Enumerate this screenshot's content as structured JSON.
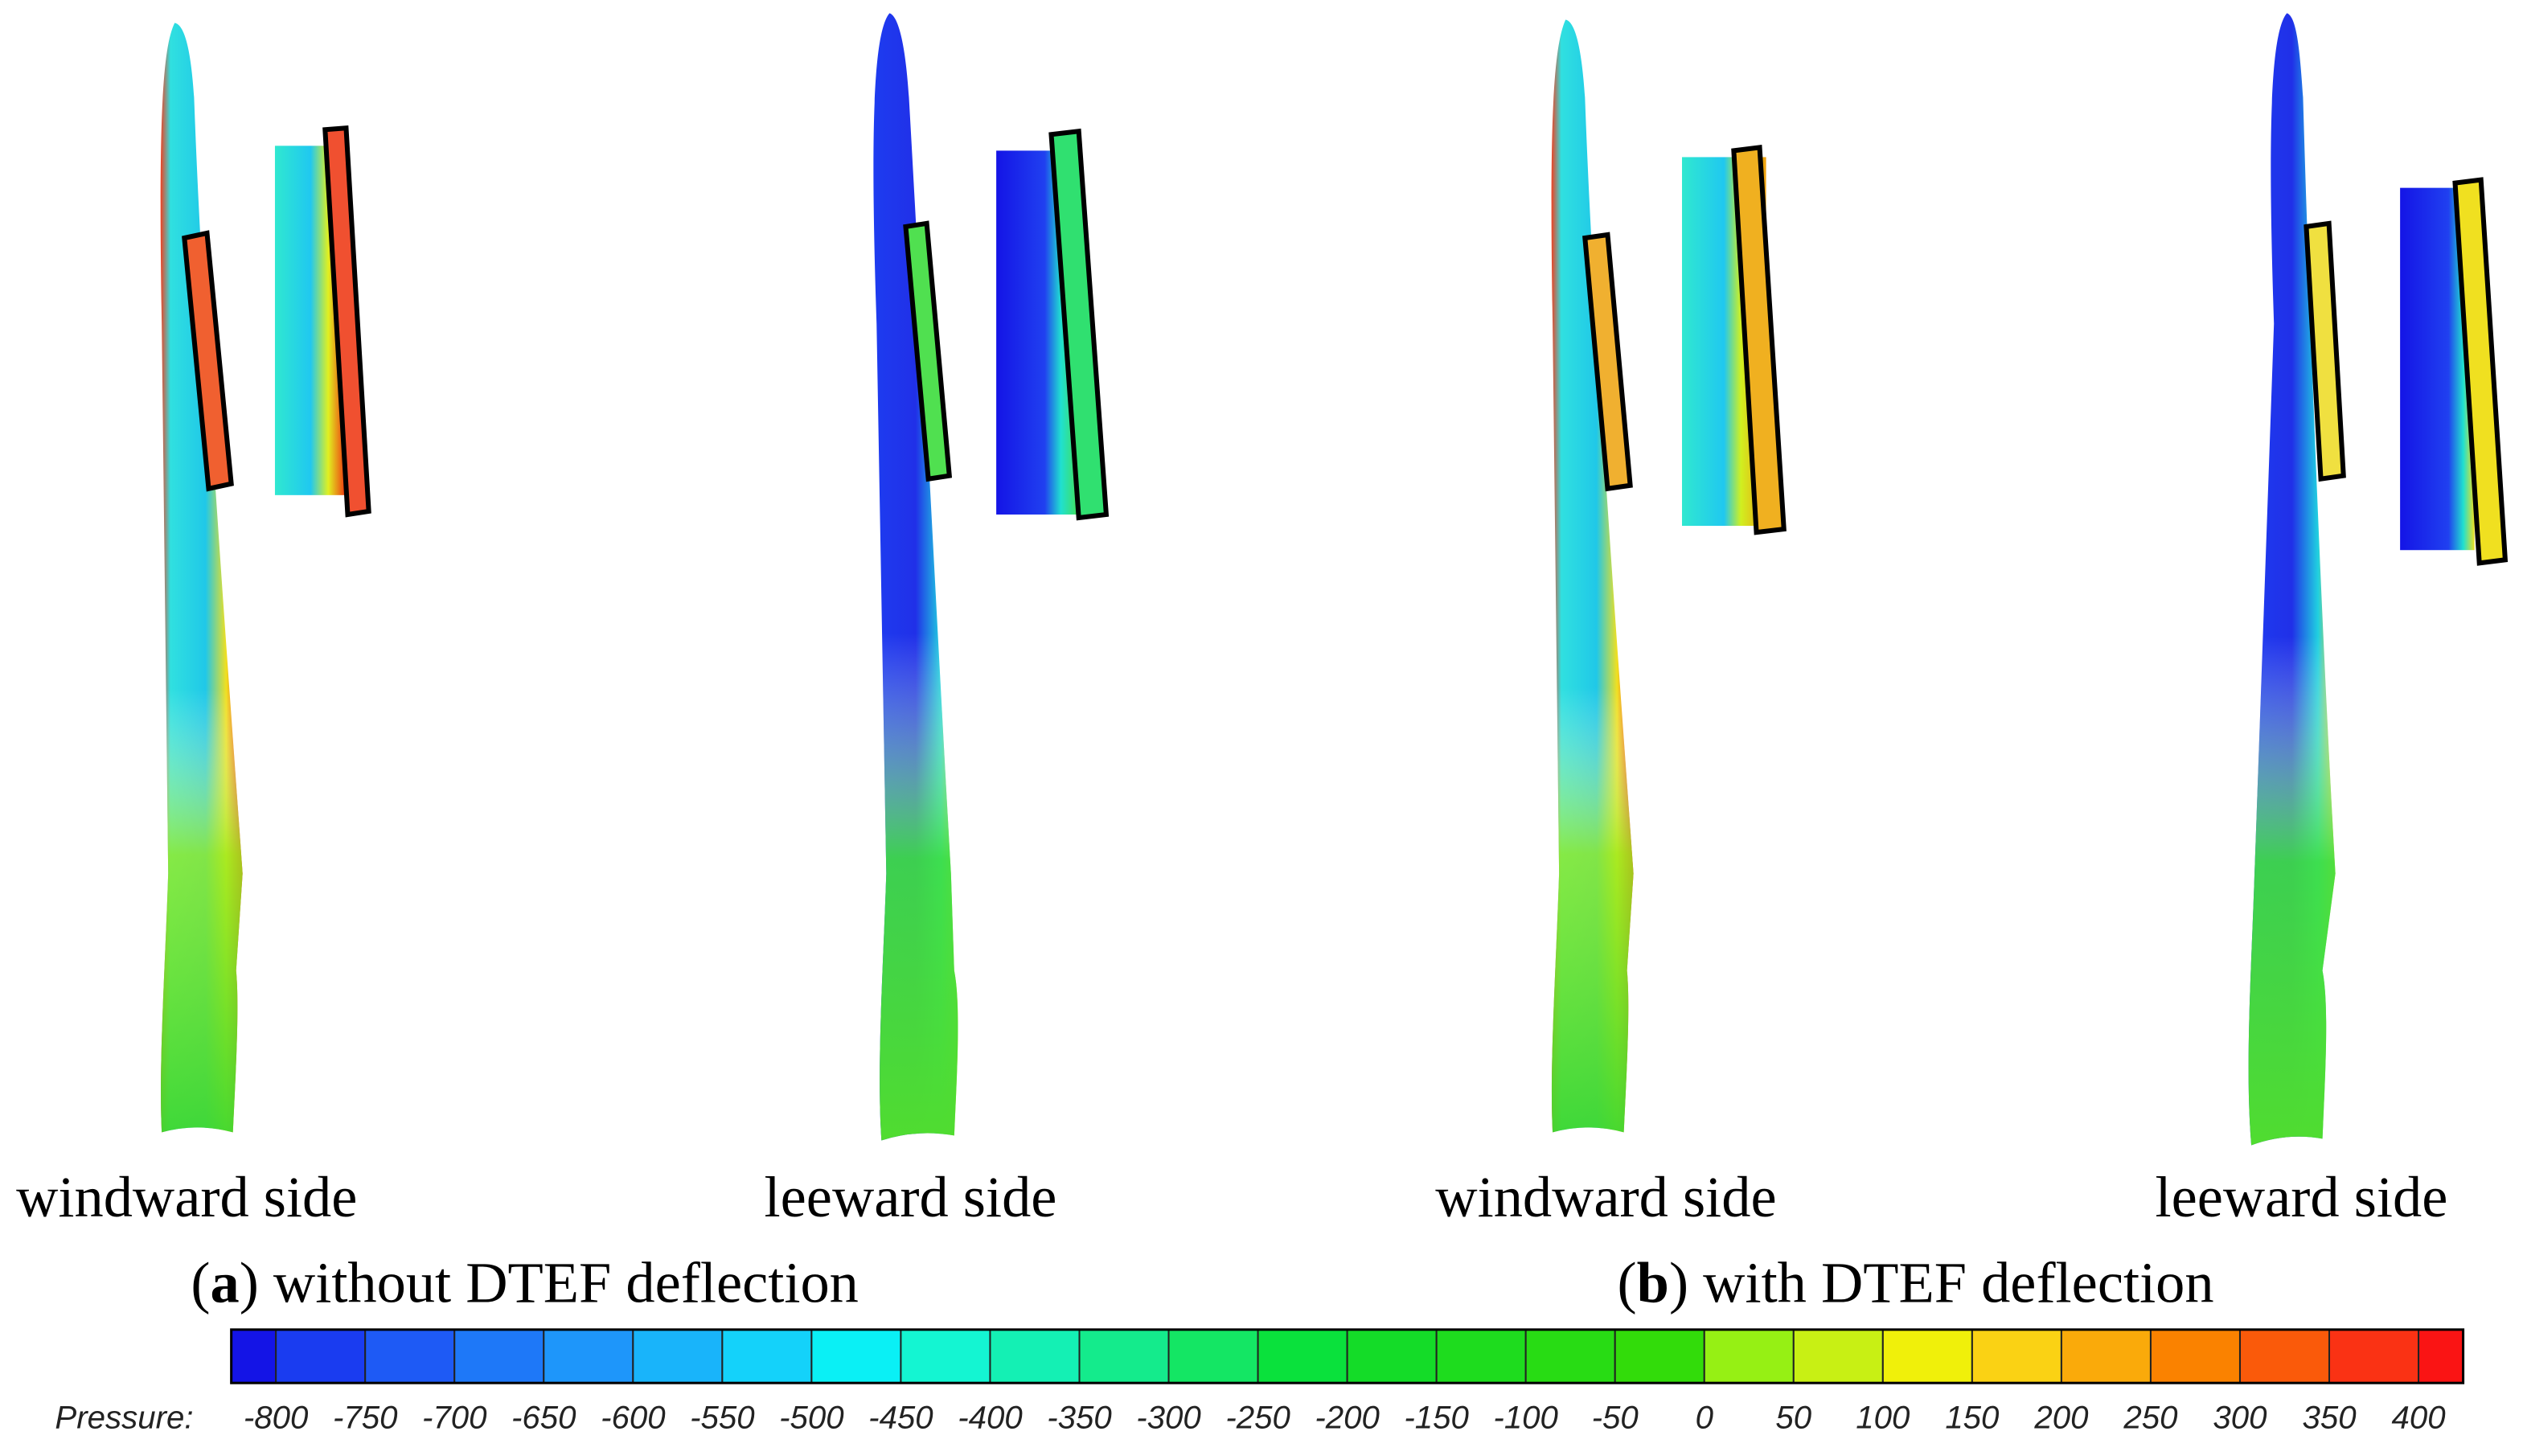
{
  "panels": [
    {
      "sides": [
        "windward side",
        "leeward side"
      ],
      "caption": {
        "open": "(",
        "label": "a",
        "close": ")",
        "text": " without DTEF deflection"
      }
    },
    {
      "sides": [
        "windward side",
        "leeward side"
      ],
      "caption": {
        "open": "(",
        "label": "b",
        "close": ")",
        "text": " with DTEF deflection"
      }
    }
  ],
  "colorbar": {
    "title": "Pressure:",
    "ticks": [
      -800,
      -750,
      -700,
      -650,
      -600,
      -550,
      -500,
      -450,
      -400,
      -350,
      -300,
      -250,
      -200,
      -150,
      -100,
      -50,
      0,
      50,
      100,
      150,
      200,
      250,
      300,
      350,
      400
    ],
    "colors": [
      "#1414e6",
      "#1a3cf0",
      "#1e5af5",
      "#1e78f8",
      "#1e96fa",
      "#19b4fa",
      "#14d2fa",
      "#0af0f5",
      "#14f5d2",
      "#14f0b4",
      "#14eb8c",
      "#14e664",
      "#0ae13c",
      "#14dc28",
      "#1edc1e",
      "#28dc14",
      "#32dc0a",
      "#96f014",
      "#c8f014",
      "#f0f00a",
      "#fad214",
      "#faaa0a",
      "#fa8200",
      "#fa5a0a",
      "#fa3214",
      "#fa1414"
    ]
  }
}
